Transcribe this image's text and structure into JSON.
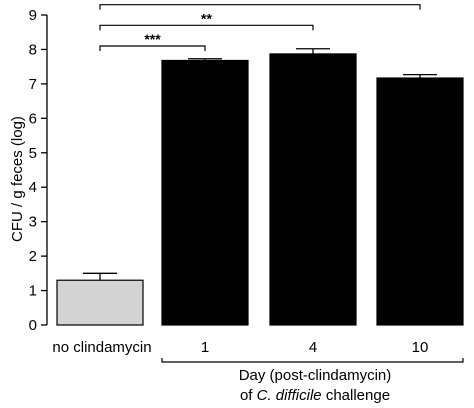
{
  "chart_data": {
    "type": "bar",
    "categories": [
      "no clindamycin",
      "1",
      "4",
      "10"
    ],
    "values": [
      1.3,
      7.68,
      7.87,
      7.17
    ],
    "errors": [
      0.2,
      0.05,
      0.15,
      0.1
    ],
    "bar_colors": [
      "#d3d3d3",
      "#000000",
      "#000000",
      "#000000"
    ],
    "ylabel": "CFU / g feces (log)",
    "xlabel_line1": "Day (post-clindamycin)",
    "xlabel_line2_pre": "of ",
    "xlabel_line2_italic": "C. difficile",
    "xlabel_line2_post": " challenge",
    "ylim": [
      0,
      9
    ],
    "yticks": [
      "0",
      "1",
      "2",
      "3",
      "4",
      "5",
      "6",
      "7",
      "8",
      "9"
    ],
    "grid": false,
    "significance": [
      {
        "from": 0,
        "to": 1,
        "label": "***",
        "y": 8.1
      },
      {
        "from": 0,
        "to": 2,
        "label": "**",
        "y": 8.7
      },
      {
        "from": 0,
        "to": 3,
        "label": "**",
        "y": 9.3
      }
    ]
  }
}
